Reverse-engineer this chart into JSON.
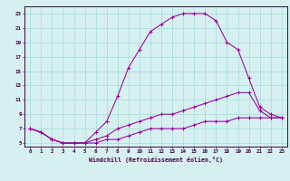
{
  "xlabel": "Windchill (Refroidissement éolien,°C)",
  "bg_color": "#d6f0f0",
  "grid_color": "#aadddd",
  "line_color": "#990099",
  "xlim": [
    -0.5,
    23.5
  ],
  "ylim": [
    4.5,
    24.0
  ],
  "xticks": [
    0,
    1,
    2,
    3,
    4,
    5,
    6,
    7,
    8,
    9,
    10,
    11,
    12,
    13,
    14,
    15,
    16,
    17,
    18,
    19,
    20,
    21,
    22,
    23
  ],
  "yticks": [
    5,
    7,
    9,
    11,
    13,
    15,
    17,
    19,
    21,
    23
  ],
  "lines": [
    {
      "x": [
        0,
        1,
        2,
        3,
        4,
        5,
        6,
        7,
        8,
        9,
        10,
        11,
        12,
        13,
        14,
        15,
        16,
        17,
        18,
        19,
        20,
        21,
        22,
        23
      ],
      "y": [
        7,
        6.5,
        5.5,
        5,
        5,
        5,
        6.5,
        8,
        11.5,
        15.5,
        18,
        20.5,
        21.5,
        22.5,
        23,
        23,
        23,
        22,
        19,
        18,
        14,
        10,
        9,
        8.5
      ]
    },
    {
      "x": [
        0,
        1,
        2,
        3,
        4,
        5,
        6,
        7,
        8,
        9,
        10,
        11,
        12,
        13,
        14,
        15,
        16,
        17,
        18,
        19,
        20,
        21,
        22,
        23
      ],
      "y": [
        7,
        6.5,
        5.5,
        5,
        5,
        5,
        5.5,
        6,
        7,
        7.5,
        8,
        8.5,
        9,
        9,
        9.5,
        10,
        10.5,
        11,
        11.5,
        12,
        12,
        9.5,
        8.5,
        8.5
      ]
    },
    {
      "x": [
        0,
        1,
        2,
        3,
        4,
        5,
        6,
        7,
        8,
        9,
        10,
        11,
        12,
        13,
        14,
        15,
        16,
        17,
        18,
        19,
        20,
        21,
        22,
        23
      ],
      "y": [
        7,
        6.5,
        5.5,
        5,
        5,
        5,
        5,
        5.5,
        5.5,
        6,
        6.5,
        7,
        7,
        7,
        7,
        7.5,
        8,
        8,
        8,
        8.5,
        8.5,
        8.5,
        8.5,
        8.5
      ]
    }
  ]
}
